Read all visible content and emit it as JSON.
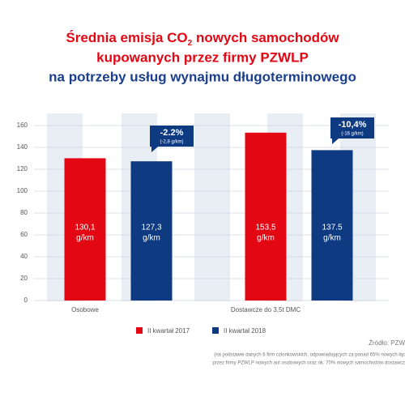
{
  "chart_data": {
    "type": "bar",
    "title": {
      "line1": [
        "Średnia emisja CO",
        "2",
        " nowych samochodów"
      ],
      "line2": "kupowanych przez firmy PZWLP",
      "line3": "na potrzeby usług wynajmu długoterminowego"
    },
    "categories": [
      "Osobowe",
      "Dostawcze do 3,5t DMC"
    ],
    "series": [
      {
        "name": "II kwartał 2017",
        "color": "#e30613",
        "values": [
          130.1,
          153.5
        ],
        "value_labels": [
          "130,1",
          "153,5"
        ]
      },
      {
        "name": "II kwartał 2018",
        "color": "#0e3a82",
        "values": [
          127.3,
          137.5
        ],
        "value_labels": [
          "127,3",
          "137.5"
        ]
      }
    ],
    "unit_label": "g/km",
    "annotations": [
      {
        "text": "-2.2%",
        "subtext": "(-2,8 g/km)"
      },
      {
        "text": "-10,4%",
        "subtext": "(-16 g/km)"
      }
    ],
    "ylim": [
      0,
      160
    ],
    "yticks": [
      0,
      20,
      40,
      60,
      80,
      100,
      120,
      140,
      160
    ],
    "grid": true,
    "source": [
      "Źródło: PZW",
      "(na podstawie danych 6 firm członkowskich, odpowiadających za ponad 65% nowych łąc",
      "przez firmy PZWLP nowych aut osobowych oraz ok. 70% nowych samochodów dostawcz"
    ]
  }
}
